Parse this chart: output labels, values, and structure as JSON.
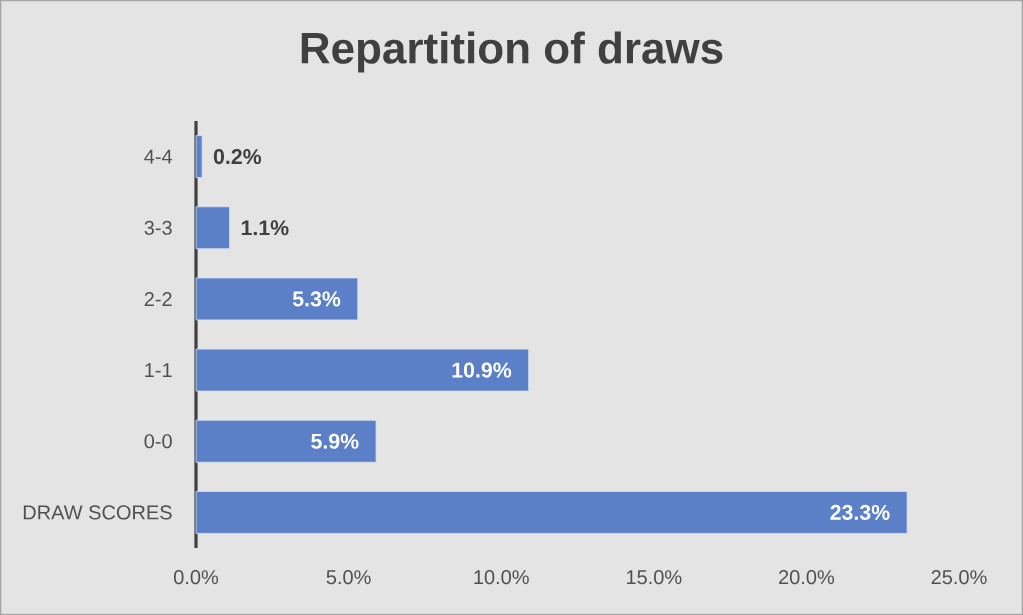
{
  "chart_data": {
    "type": "bar",
    "orientation": "horizontal",
    "title": "Repartition of draws",
    "categories": [
      "4-4",
      "3-3",
      "2-2",
      "1-1",
      "0-0",
      "DRAW SCORES"
    ],
    "values": [
      0.2,
      1.1,
      5.3,
      10.9,
      5.9,
      23.3
    ],
    "color": "#5b80c8",
    "value_labels": [
      "0.2%",
      "1.1%",
      "5.3%",
      "10.9%",
      "5.9%",
      "23.3%"
    ],
    "xlim": [
      0,
      25
    ],
    "xticks": [
      {
        "value": 0,
        "label": "0.0%"
      },
      {
        "value": 5,
        "label": "5.0%"
      },
      {
        "value": 10,
        "label": "10.0%"
      },
      {
        "value": 15,
        "label": "15.0%"
      },
      {
        "value": 20,
        "label": "20.0%"
      },
      {
        "value": 25,
        "label": "25.0%"
      }
    ]
  }
}
